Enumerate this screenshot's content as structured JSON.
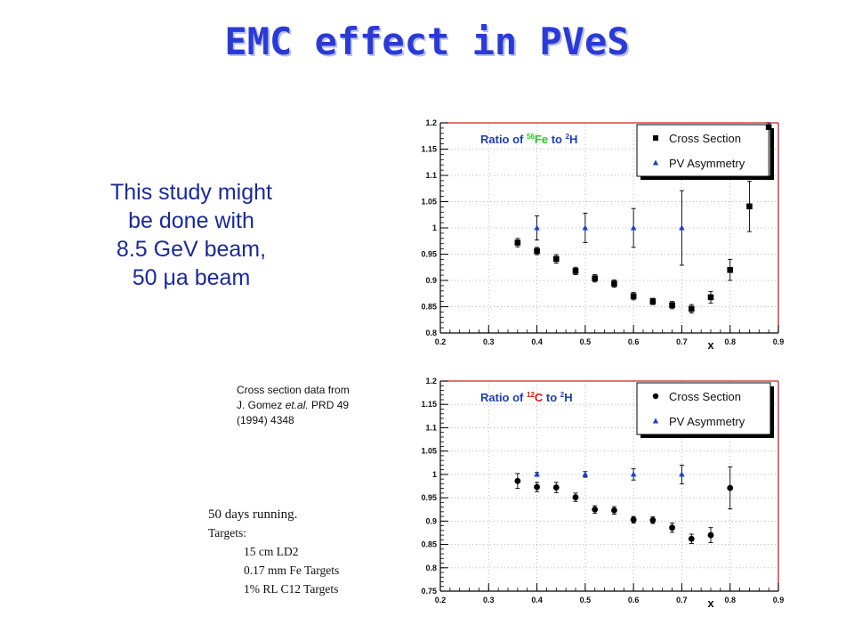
{
  "page": {
    "title": "EMC effect in PVeS",
    "study_lines": [
      "This study might",
      "be done with",
      "8.5 GeV beam,",
      "50 μa beam"
    ],
    "citation": {
      "line1": "Cross section  data from",
      "line2_pre": "J. Gomez ",
      "line2_italic": "et.al.",
      "line2_post": " PRD 49",
      "line3": "(1994) 4348"
    },
    "running": {
      "line1": "50 days running.",
      "targets_label": "Targets:",
      "targets": [
        "15 cm LD2",
        "0.17 mm Fe Targets",
        "1% RL C12 Targets"
      ]
    }
  },
  "chart_data": [
    {
      "type": "scatter",
      "title": "Ratio of 56Fe to 2H",
      "ratio_text": {
        "prefix": "Ratio  of",
        "num_sup": "56",
        "num_el": "Fe",
        "num_color": "#22cc22",
        "to": "to",
        "den_sup": "2",
        "den_el": "H"
      },
      "xlabel": "x",
      "ylabel": "",
      "xlim": [
        0.2,
        0.9
      ],
      "ylim": [
        0.8,
        1.2
      ],
      "xticks": [
        "0.2",
        "0.3",
        "0.4",
        "0.5",
        "0.6",
        "0.7",
        "0.8",
        "0.9"
      ],
      "yticks": [
        "0.8",
        "0.85",
        "0.9",
        "0.95",
        "1",
        "1.05",
        "1.1",
        "1.15",
        "1.2"
      ],
      "grid": true,
      "legend": "top-right",
      "series": [
        {
          "name": "Cross Section",
          "marker": "square",
          "color": "#000000",
          "points": [
            {
              "x": 0.36,
              "y": 0.972,
              "err": 0.008
            },
            {
              "x": 0.4,
              "y": 0.956,
              "err": 0.007
            },
            {
              "x": 0.44,
              "y": 0.941,
              "err": 0.008
            },
            {
              "x": 0.48,
              "y": 0.918,
              "err": 0.007
            },
            {
              "x": 0.52,
              "y": 0.904,
              "err": 0.007
            },
            {
              "x": 0.56,
              "y": 0.894,
              "err": 0.007
            },
            {
              "x": 0.6,
              "y": 0.87,
              "err": 0.007
            },
            {
              "x": 0.64,
              "y": 0.86,
              "err": 0.006
            },
            {
              "x": 0.68,
              "y": 0.853,
              "err": 0.007
            },
            {
              "x": 0.72,
              "y": 0.846,
              "err": 0.008
            },
            {
              "x": 0.76,
              "y": 0.868,
              "err": 0.011
            },
            {
              "x": 0.8,
              "y": 0.92,
              "err": 0.02
            },
            {
              "x": 0.84,
              "y": 1.041,
              "err": 0.048
            },
            {
              "x": 0.88,
              "y": 1.192,
              "err": 0.1
            }
          ]
        },
        {
          "name": "PV Asymmetry",
          "marker": "triangle",
          "color": "#1a3fd0",
          "points": [
            {
              "x": 0.4,
              "y": 1.0,
              "err": 0.023
            },
            {
              "x": 0.5,
              "y": 1.0,
              "err": 0.028
            },
            {
              "x": 0.6,
              "y": 1.0,
              "err": 0.037
            },
            {
              "x": 0.7,
              "y": 1.0,
              "err": 0.071
            }
          ]
        }
      ]
    },
    {
      "type": "scatter",
      "title": "Ratio of 12C to 2H",
      "ratio_text": {
        "prefix": "Ratio  of",
        "num_sup": "12",
        "num_el": "C",
        "num_color": "#e01010",
        "to": "to",
        "den_sup": "2",
        "den_el": "H"
      },
      "xlabel": "x",
      "ylabel": "",
      "xlim": [
        0.2,
        0.9
      ],
      "ylim": [
        0.75,
        1.2
      ],
      "xticks": [
        "0.2",
        "0.3",
        "0.4",
        "0.5",
        "0.6",
        "0.7",
        "0.8",
        "0.9"
      ],
      "yticks": [
        "0.75",
        "0.8",
        "0.85",
        "0.9",
        "0.95",
        "1",
        "1.05",
        "1.1",
        "1.15",
        "1.2"
      ],
      "grid": true,
      "legend": "top-right",
      "series": [
        {
          "name": "Cross Section",
          "marker": "circle",
          "color": "#000000",
          "points": [
            {
              "x": 0.36,
              "y": 0.986,
              "err": 0.016
            },
            {
              "x": 0.4,
              "y": 0.973,
              "err": 0.01
            },
            {
              "x": 0.44,
              "y": 0.972,
              "err": 0.011
            },
            {
              "x": 0.48,
              "y": 0.951,
              "err": 0.009
            },
            {
              "x": 0.52,
              "y": 0.925,
              "err": 0.008
            },
            {
              "x": 0.56,
              "y": 0.923,
              "err": 0.008
            },
            {
              "x": 0.6,
              "y": 0.903,
              "err": 0.007
            },
            {
              "x": 0.64,
              "y": 0.902,
              "err": 0.007
            },
            {
              "x": 0.68,
              "y": 0.886,
              "err": 0.01
            },
            {
              "x": 0.72,
              "y": 0.862,
              "err": 0.01
            },
            {
              "x": 0.76,
              "y": 0.87,
              "err": 0.016
            },
            {
              "x": 0.8,
              "y": 0.971,
              "err": 0.045
            }
          ]
        },
        {
          "name": "PV Asymmetry",
          "marker": "triangle",
          "color": "#1a3fd0",
          "points": [
            {
              "x": 0.4,
              "y": 1.0,
              "err": 0.004
            },
            {
              "x": 0.5,
              "y": 1.0,
              "err": 0.006
            },
            {
              "x": 0.6,
              "y": 1.0,
              "err": 0.012
            },
            {
              "x": 0.7,
              "y": 1.0,
              "err": 0.02
            }
          ]
        }
      ]
    }
  ]
}
